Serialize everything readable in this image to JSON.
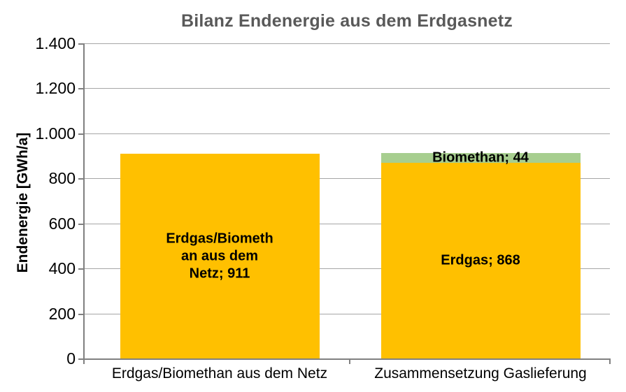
{
  "chart_data": {
    "type": "bar",
    "stacked": true,
    "title": "Bilanz Endenergie aus dem Erdgasnetz",
    "ylabel": "Endenergie [GWh/a]",
    "xlabel": "",
    "ylim": [
      0,
      1400
    ],
    "ytick_step": 200,
    "yticks": [
      0,
      200,
      400,
      600,
      800,
      1000,
      1200,
      1400
    ],
    "ytick_labels": [
      "0",
      "200",
      "400",
      "600",
      "800",
      "1.000",
      "1.200",
      "1.400"
    ],
    "grid": "horizontal",
    "legend_position": "none",
    "categories": [
      "Erdgas/Biomethan aus dem Netz",
      "Zusammensetzung Gaslieferung"
    ],
    "bars": [
      {
        "category": "Erdgas/Biomethan aus dem Netz",
        "segments": [
          {
            "name": "Erdgas/Biomethan aus dem Netz",
            "value": 911,
            "color": "#FFC000",
            "label": "Erdgas/Biomethan aus dem Netz; 911",
            "label_lines": "Erdgas/Biometh\nan aus dem\nNetz; 911"
          }
        ]
      },
      {
        "category": "Zusammensetzung Gaslieferung",
        "segments": [
          {
            "name": "Erdgas",
            "value": 868,
            "color": "#FFC000",
            "label": "Erdgas; 868",
            "label_lines": "Erdgas; 868"
          },
          {
            "name": "Biomethan",
            "value": 44,
            "color": "#A7CE8F",
            "label": "Biomethan; 44",
            "label_lines": "Biomethan; 44"
          }
        ]
      }
    ],
    "colors": {
      "erdgas": "#FFC000",
      "biomethan": "#A7CE8F",
      "gridline": "#A6A6A6",
      "axis": "#808080",
      "title_text": "#595959",
      "label_text": "#000000"
    }
  }
}
